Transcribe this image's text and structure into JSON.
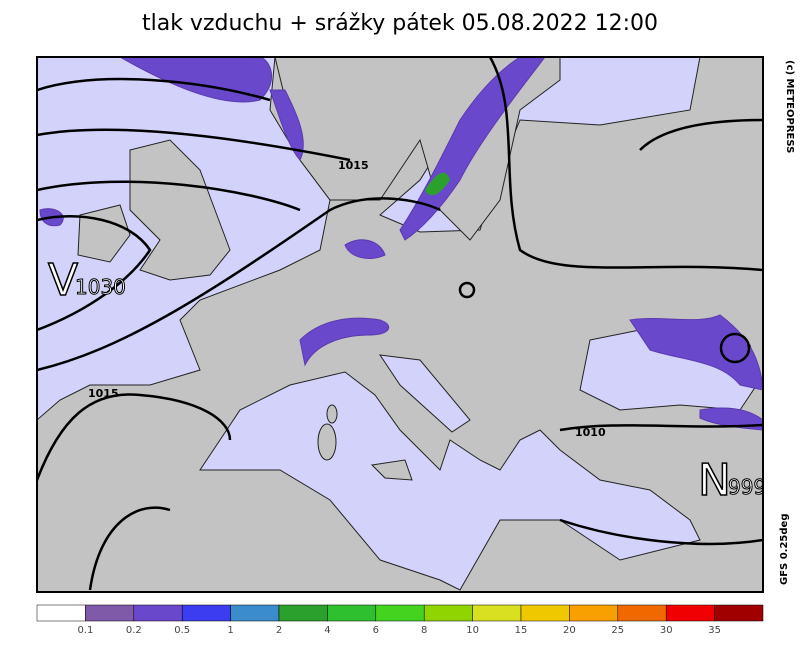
{
  "title": "tlak vzduchu + srážky   pátek 05.08.2022 12:00",
  "credit": "(c) METEOPRESS",
  "model": "GFS 0.25deg",
  "isobar_labels": [
    "1015",
    "1015",
    "1010"
  ],
  "pressure_centers": [
    {
      "letter": "V",
      "value": "1030"
    },
    {
      "letter": "N",
      "value": "999"
    }
  ],
  "colorbar": {
    "colors": [
      "#ffffff",
      "#7e5aa8",
      "#6a48cc",
      "#3c3cf0",
      "#3a8ccc",
      "#2ca02c",
      "#2ec02e",
      "#44d420",
      "#90d400",
      "#d8e020",
      "#f0c800",
      "#f8a000",
      "#f06800",
      "#f00000",
      "#a00000"
    ],
    "labels": [
      "0.1",
      "0.2",
      "0.5",
      "1",
      "2",
      "4",
      "6",
      "8",
      "10",
      "15",
      "20",
      "25",
      "30",
      "35"
    ]
  }
}
